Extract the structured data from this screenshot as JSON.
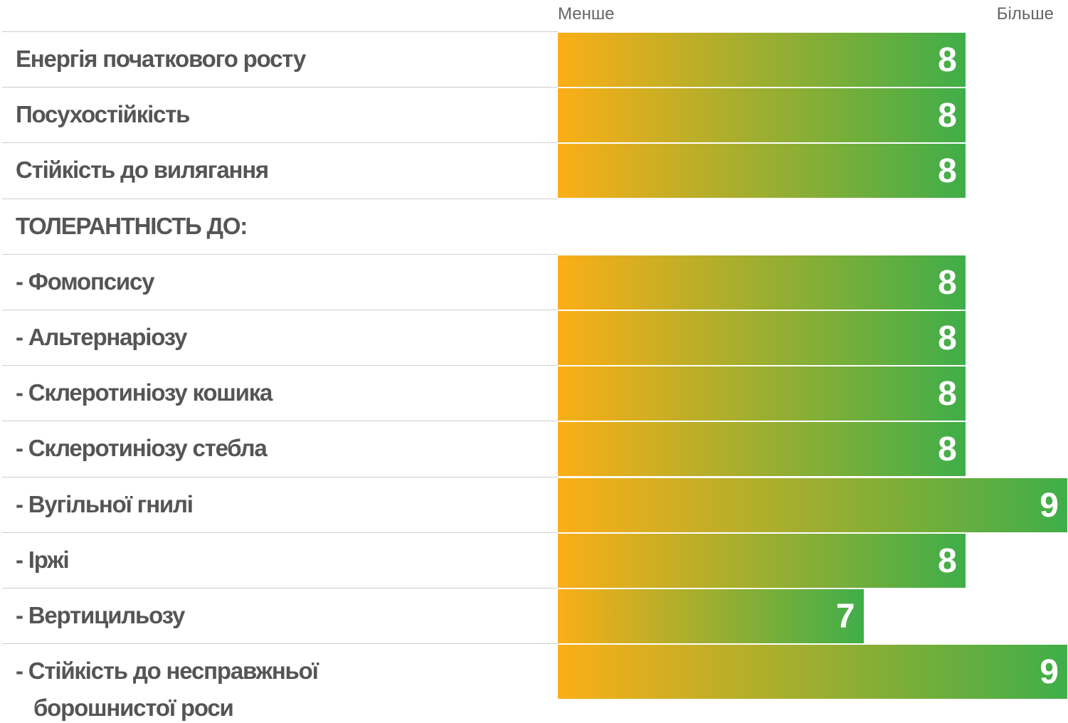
{
  "chart_data": {
    "type": "bar",
    "x_min_label": "Менше",
    "x_max_label": "Більше",
    "categories": [
      "Енергія початкового росту",
      "Посухостійкість",
      "Стійкість до вилягання",
      "ТОЛЕРАНТНІСТЬ ДО:",
      "- Фомопсису",
      "- Альтернаріозу",
      "- Склеротиніозу кошика",
      "- Склеротиніозу стебла",
      "- Вугільної гнилі",
      "- Іржі",
      "- Вертицильозу",
      "- Стійкість до несправжньої борошнистої роси"
    ],
    "values": [
      8,
      8,
      8,
      null,
      8,
      8,
      8,
      8,
      9,
      8,
      7,
      9
    ],
    "xlim": [
      4,
      9
    ],
    "colors": [
      "#fbae17",
      "#3fae49"
    ]
  }
}
